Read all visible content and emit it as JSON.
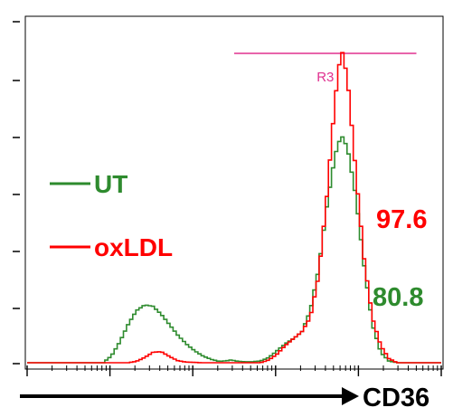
{
  "colors": {
    "ut": "#2e8b2e",
    "oxldl": "#ff0000",
    "gate": "#e0308f",
    "axis": "#000000"
  },
  "chart_data": {
    "type": "line",
    "xlabel": "CD36",
    "xscale": "log",
    "xlim": [
      0,
      1
    ],
    "ylim": [
      0,
      1
    ],
    "grid": false,
    "legend_position": "left",
    "legend": [
      "UT",
      "oxLDL"
    ],
    "gate": {
      "label": "R3",
      "range": [
        0.5,
        0.94
      ]
    },
    "annotations": [
      {
        "text": "97.6",
        "series": "oxLDL"
      },
      {
        "text": "80.8",
        "series": "UT"
      }
    ],
    "series": [
      {
        "name": "UT",
        "color": "#2e8b2e",
        "points": [
          [
            0.0,
            0.0
          ],
          [
            0.18,
            0.0
          ],
          [
            0.2,
            0.02
          ],
          [
            0.22,
            0.06
          ],
          [
            0.24,
            0.11
          ],
          [
            0.26,
            0.15
          ],
          [
            0.28,
            0.167
          ],
          [
            0.3,
            0.163
          ],
          [
            0.32,
            0.14
          ],
          [
            0.34,
            0.11
          ],
          [
            0.36,
            0.08
          ],
          [
            0.38,
            0.055
          ],
          [
            0.4,
            0.035
          ],
          [
            0.42,
            0.02
          ],
          [
            0.44,
            0.01
          ],
          [
            0.46,
            0.004
          ],
          [
            0.48,
            0.006
          ],
          [
            0.49,
            0.008
          ],
          [
            0.5,
            0.005
          ],
          [
            0.52,
            0.003
          ],
          [
            0.54,
            0.003
          ],
          [
            0.56,
            0.005
          ],
          [
            0.58,
            0.015
          ],
          [
            0.6,
            0.035
          ],
          [
            0.62,
            0.055
          ],
          [
            0.64,
            0.07
          ],
          [
            0.66,
            0.09
          ],
          [
            0.68,
            0.15
          ],
          [
            0.7,
            0.27
          ],
          [
            0.72,
            0.45
          ],
          [
            0.74,
            0.6
          ],
          [
            0.755,
            0.658
          ],
          [
            0.77,
            0.62
          ],
          [
            0.79,
            0.48
          ],
          [
            0.81,
            0.28
          ],
          [
            0.83,
            0.11
          ],
          [
            0.85,
            0.03
          ],
          [
            0.87,
            0.005
          ],
          [
            0.89,
            0.0
          ],
          [
            1.0,
            0.0
          ]
        ]
      },
      {
        "name": "oxLDL",
        "color": "#ff0000",
        "points": [
          [
            0.0,
            0.0
          ],
          [
            0.24,
            0.0
          ],
          [
            0.26,
            0.004
          ],
          [
            0.28,
            0.015
          ],
          [
            0.3,
            0.03
          ],
          [
            0.32,
            0.032
          ],
          [
            0.34,
            0.018
          ],
          [
            0.36,
            0.006
          ],
          [
            0.38,
            0.002
          ],
          [
            0.42,
            0.0
          ],
          [
            0.56,
            0.0
          ],
          [
            0.58,
            0.008
          ],
          [
            0.6,
            0.025
          ],
          [
            0.62,
            0.05
          ],
          [
            0.64,
            0.07
          ],
          [
            0.66,
            0.09
          ],
          [
            0.68,
            0.13
          ],
          [
            0.7,
            0.25
          ],
          [
            0.72,
            0.48
          ],
          [
            0.74,
            0.76
          ],
          [
            0.755,
            0.91
          ],
          [
            0.77,
            0.82
          ],
          [
            0.79,
            0.55
          ],
          [
            0.81,
            0.3
          ],
          [
            0.83,
            0.13
          ],
          [
            0.85,
            0.05
          ],
          [
            0.87,
            0.012
          ],
          [
            0.89,
            0.0
          ],
          [
            1.0,
            0.0
          ]
        ]
      }
    ]
  }
}
